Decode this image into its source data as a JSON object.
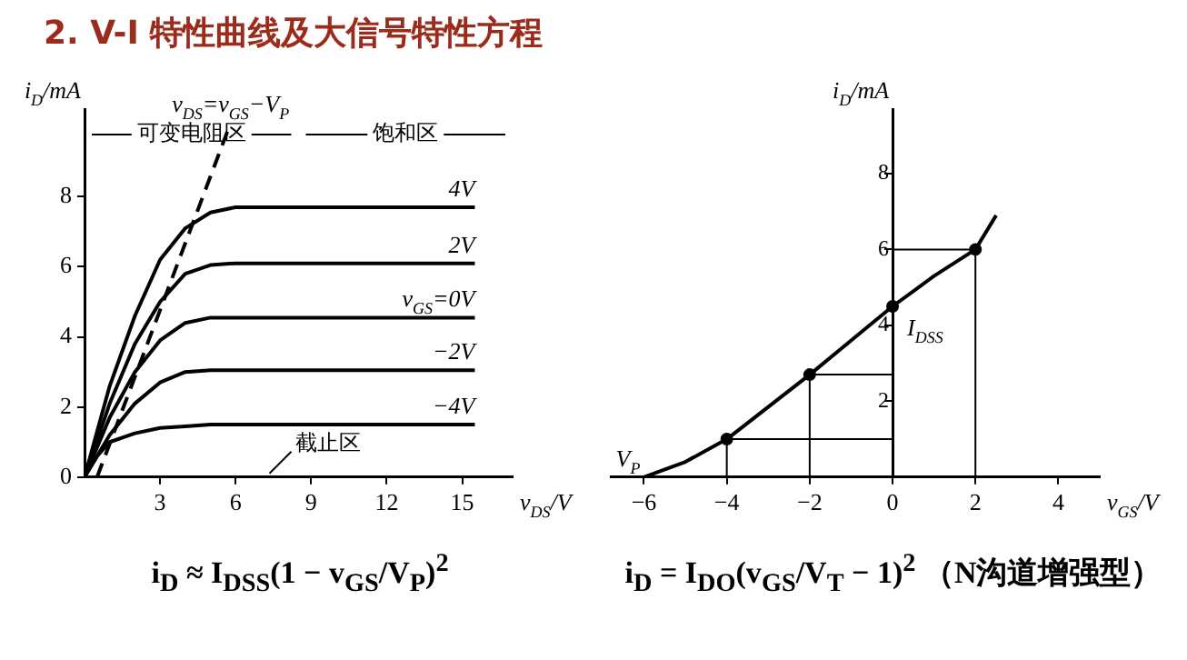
{
  "chart_data": [
    {
      "type": "line",
      "title": "2. V-I 特性曲线及大信号特性方程",
      "xlabel": "v$_{DS}$/V",
      "ylabel": "i$_{D}$/mA",
      "xlim": [
        0,
        17
      ],
      "ylim": [
        0,
        10.5
      ],
      "xticks": [
        3,
        6,
        9,
        12,
        15
      ],
      "yticks": [
        0,
        2,
        4,
        6,
        8
      ],
      "grid": false,
      "legend": false,
      "marker": "none",
      "series": [
        {
          "name": "4V",
          "color": "#000000",
          "x": [
            0,
            1,
            2,
            3,
            4,
            5,
            6,
            15.5
          ],
          "values": [
            0,
            2.6,
            4.6,
            6.2,
            7.1,
            7.55,
            7.7,
            7.7
          ]
        },
        {
          "name": "2V",
          "color": "#000000",
          "x": [
            0,
            1,
            2,
            3,
            4,
            5,
            6,
            15.5
          ],
          "values": [
            0,
            2.1,
            3.8,
            5.0,
            5.8,
            6.05,
            6.1,
            6.1
          ]
        },
        {
          "name": "v$_{GS}$=0V",
          "color": "#000000",
          "x": [
            0,
            1,
            2,
            3,
            4,
            5,
            15.5
          ],
          "values": [
            0,
            1.7,
            3.0,
            3.9,
            4.4,
            4.55,
            4.55
          ]
        },
        {
          "name": "−2V",
          "color": "#000000",
          "x": [
            0,
            1,
            2,
            3,
            4,
            5,
            15.5
          ],
          "values": [
            0,
            1.2,
            2.1,
            2.7,
            3.0,
            3.05,
            3.05
          ]
        },
        {
          "name": "−4V",
          "color": "#000000",
          "x": [
            0,
            0.5,
            1,
            2,
            3,
            4,
            5,
            15.5
          ],
          "values": [
            0,
            0.6,
            1.0,
            1.25,
            1.4,
            1.45,
            1.5,
            1.5
          ]
        },
        {
          "name": "v$_{DS}$=v$_{GS}$−V$_{P}$",
          "color": "#000000",
          "line_style": "dashed",
          "x": [
            0.5,
            5.8
          ],
          "values": [
            0,
            10.1
          ]
        }
      ],
      "annotations": [
        "可变电阻区",
        "饱和区",
        "截止区",
        "i$_{D}$ ≈ I$_{DSS}$(1 − v$_{GS}$/V$_{P}$)$^{2}$"
      ]
    },
    {
      "type": "line",
      "xlabel": "v$_{GS}$/V",
      "ylabel": "i$_{D}$/mA",
      "xlim": [
        -6.8,
        5.0
      ],
      "ylim": [
        0,
        9.7
      ],
      "xticks": [
        {
          "value": -6,
          "label": "−6"
        },
        {
          "value": -4,
          "label": "−4"
        },
        {
          "value": -2,
          "label": "−2"
        },
        0,
        2,
        4
      ],
      "yticks": [
        2,
        4,
        6,
        8
      ],
      "grid": false,
      "legend": false,
      "series": [
        {
          "color": "#000000",
          "marker": "none",
          "x": [
            -6,
            -5,
            -4,
            -3,
            -2,
            -1,
            0,
            1,
            2,
            2.5
          ],
          "values": [
            0,
            0.4,
            1.0,
            1.85,
            2.7,
            3.6,
            4.5,
            5.3,
            6.0,
            6.9
          ]
        },
        {
          "type": "scatter",
          "color": "#000000",
          "marker": "circle",
          "x": [
            -4,
            -2,
            0,
            2
          ],
          "values": [
            1.0,
            2.7,
            4.5,
            6.0
          ]
        },
        {
          "color": "#000000",
          "marker": "none",
          "x": [
            -4,
            -4,
            0
          ],
          "values": [
            0,
            1.0,
            1.0
          ]
        },
        {
          "color": "#000000",
          "marker": "none",
          "x": [
            -2,
            -2,
            0
          ],
          "values": [
            0,
            2.7,
            2.7
          ]
        },
        {
          "color": "#000000",
          "marker": "none",
          "x": [
            0,
            2,
            2
          ],
          "values": [
            6.0,
            6.0,
            0
          ]
        }
      ],
      "annotations": [
        {
          "text": "V$_{P}$",
          "x": -6,
          "y": 0
        },
        {
          "text": "I$_{DSS}$",
          "x": 0,
          "y": 4.5
        },
        "i$_{D}$ = I$_{DO}$(v$_{GS}$/V$_{T}$ − 1)$^{2}$ （N沟道增强型）"
      ]
    }
  ]
}
